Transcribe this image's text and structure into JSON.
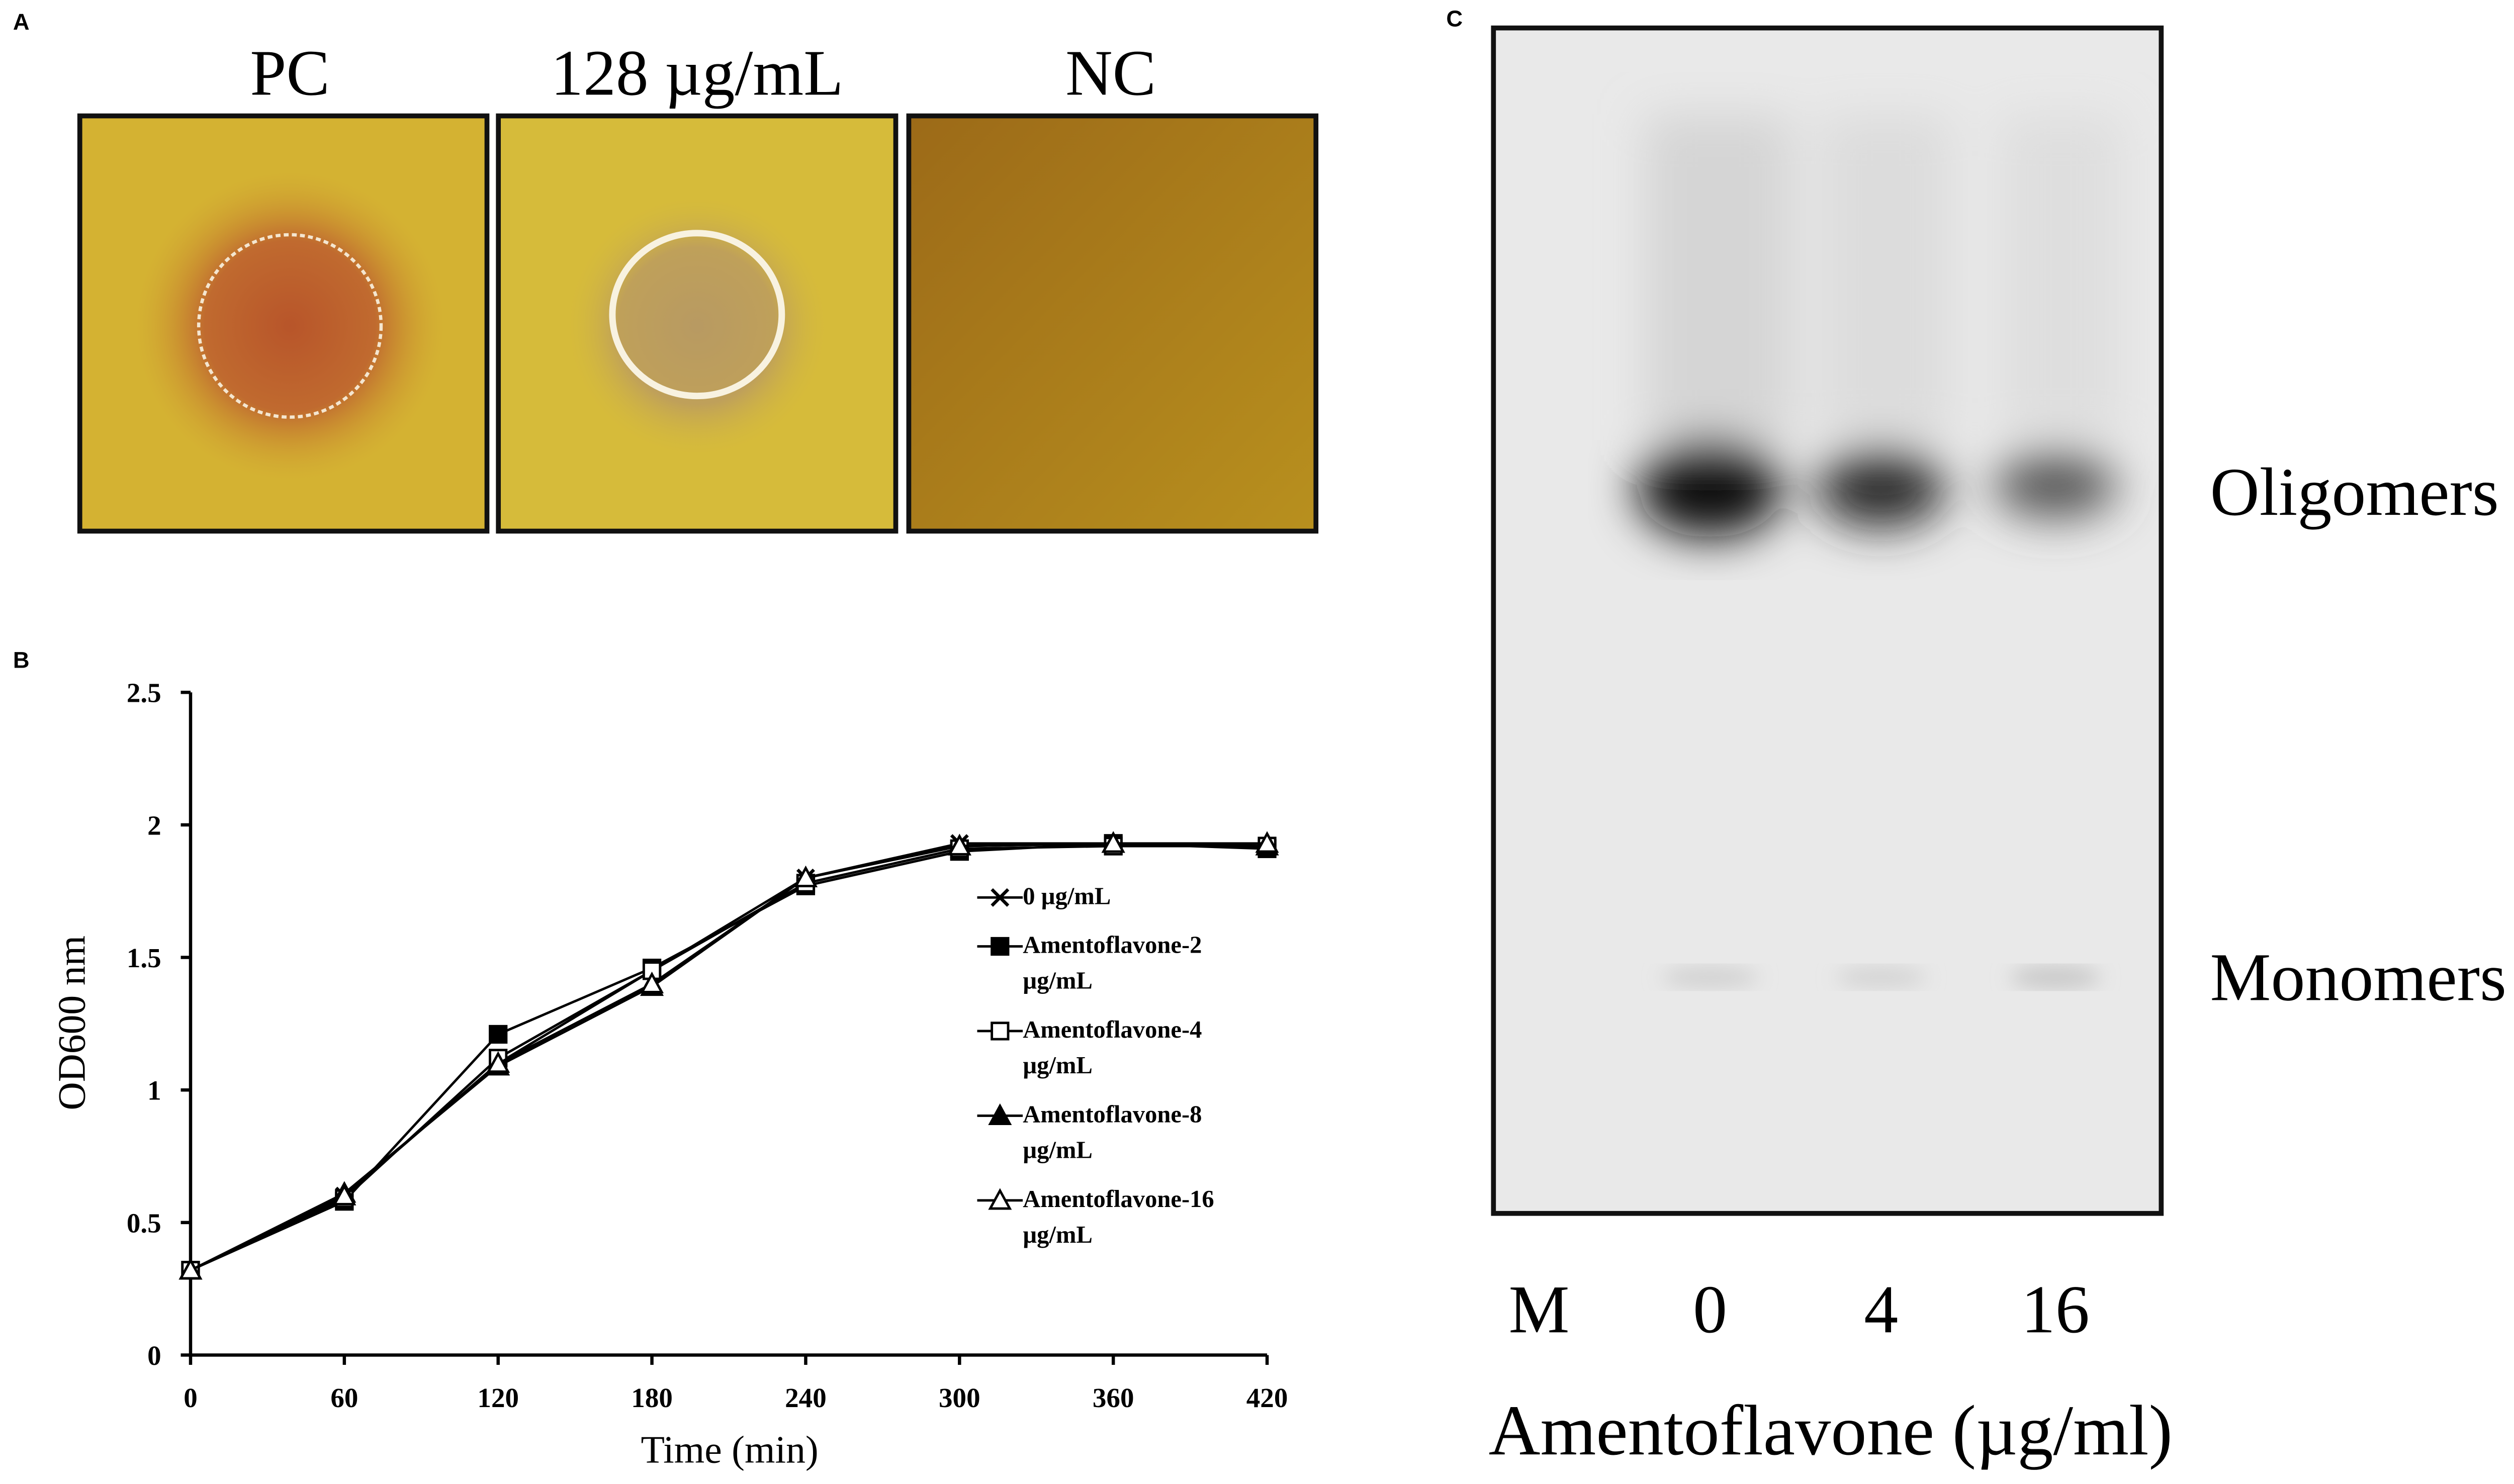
{
  "panels": {
    "a": {
      "label": "A",
      "plates": [
        "PC",
        "128 µg/mL",
        "NC"
      ]
    },
    "c": {
      "label": "C",
      "bands": [
        "Oligomers",
        "Monomers"
      ],
      "lanes": [
        "M",
        "0",
        "4",
        "16"
      ],
      "xlabel": "Amentoflavone (µg/ml)"
    }
  },
  "chart_data": {
    "type": "line",
    "label": "B",
    "xlabel": "Time (min)",
    "ylabel": "OD600 nm",
    "x": [
      0,
      60,
      120,
      180,
      240,
      300,
      360,
      420
    ],
    "xlim": [
      0,
      420
    ],
    "xticks": [
      0,
      60,
      120,
      180,
      240,
      300,
      360,
      420
    ],
    "ylim": [
      0,
      2.5
    ],
    "yticks": [
      0,
      0.5,
      1,
      1.5,
      2,
      2.5
    ],
    "series": [
      {
        "name": "0 µg/mL",
        "color": "#000000",
        "marker": "x",
        "values": [
          0.32,
          0.6,
          1.1,
          1.45,
          1.8,
          1.93,
          1.93,
          1.92
        ]
      },
      {
        "name": "Amentoflavone-2 µg/mL",
        "color": "#000000",
        "marker": "square",
        "values": [
          0.32,
          0.58,
          1.21,
          1.46,
          1.77,
          1.9,
          1.93,
          1.91
        ]
      },
      {
        "name": "Amentoflavone-4 µg/mL",
        "color": "#000000",
        "marker": "square-open",
        "values": [
          0.32,
          0.59,
          1.12,
          1.45,
          1.78,
          1.91,
          1.92,
          1.92
        ]
      },
      {
        "name": "Amentoflavone-8 µg/mL",
        "color": "#000000",
        "marker": "triangle",
        "values": [
          0.32,
          0.61,
          1.09,
          1.39,
          1.8,
          1.92,
          1.93,
          1.92
        ]
      },
      {
        "name": "Amentoflavone-16 µg/mL",
        "color": "#000000",
        "marker": "triangle-open",
        "values": [
          0.32,
          0.6,
          1.1,
          1.4,
          1.8,
          1.92,
          1.93,
          1.93
        ]
      }
    ]
  }
}
